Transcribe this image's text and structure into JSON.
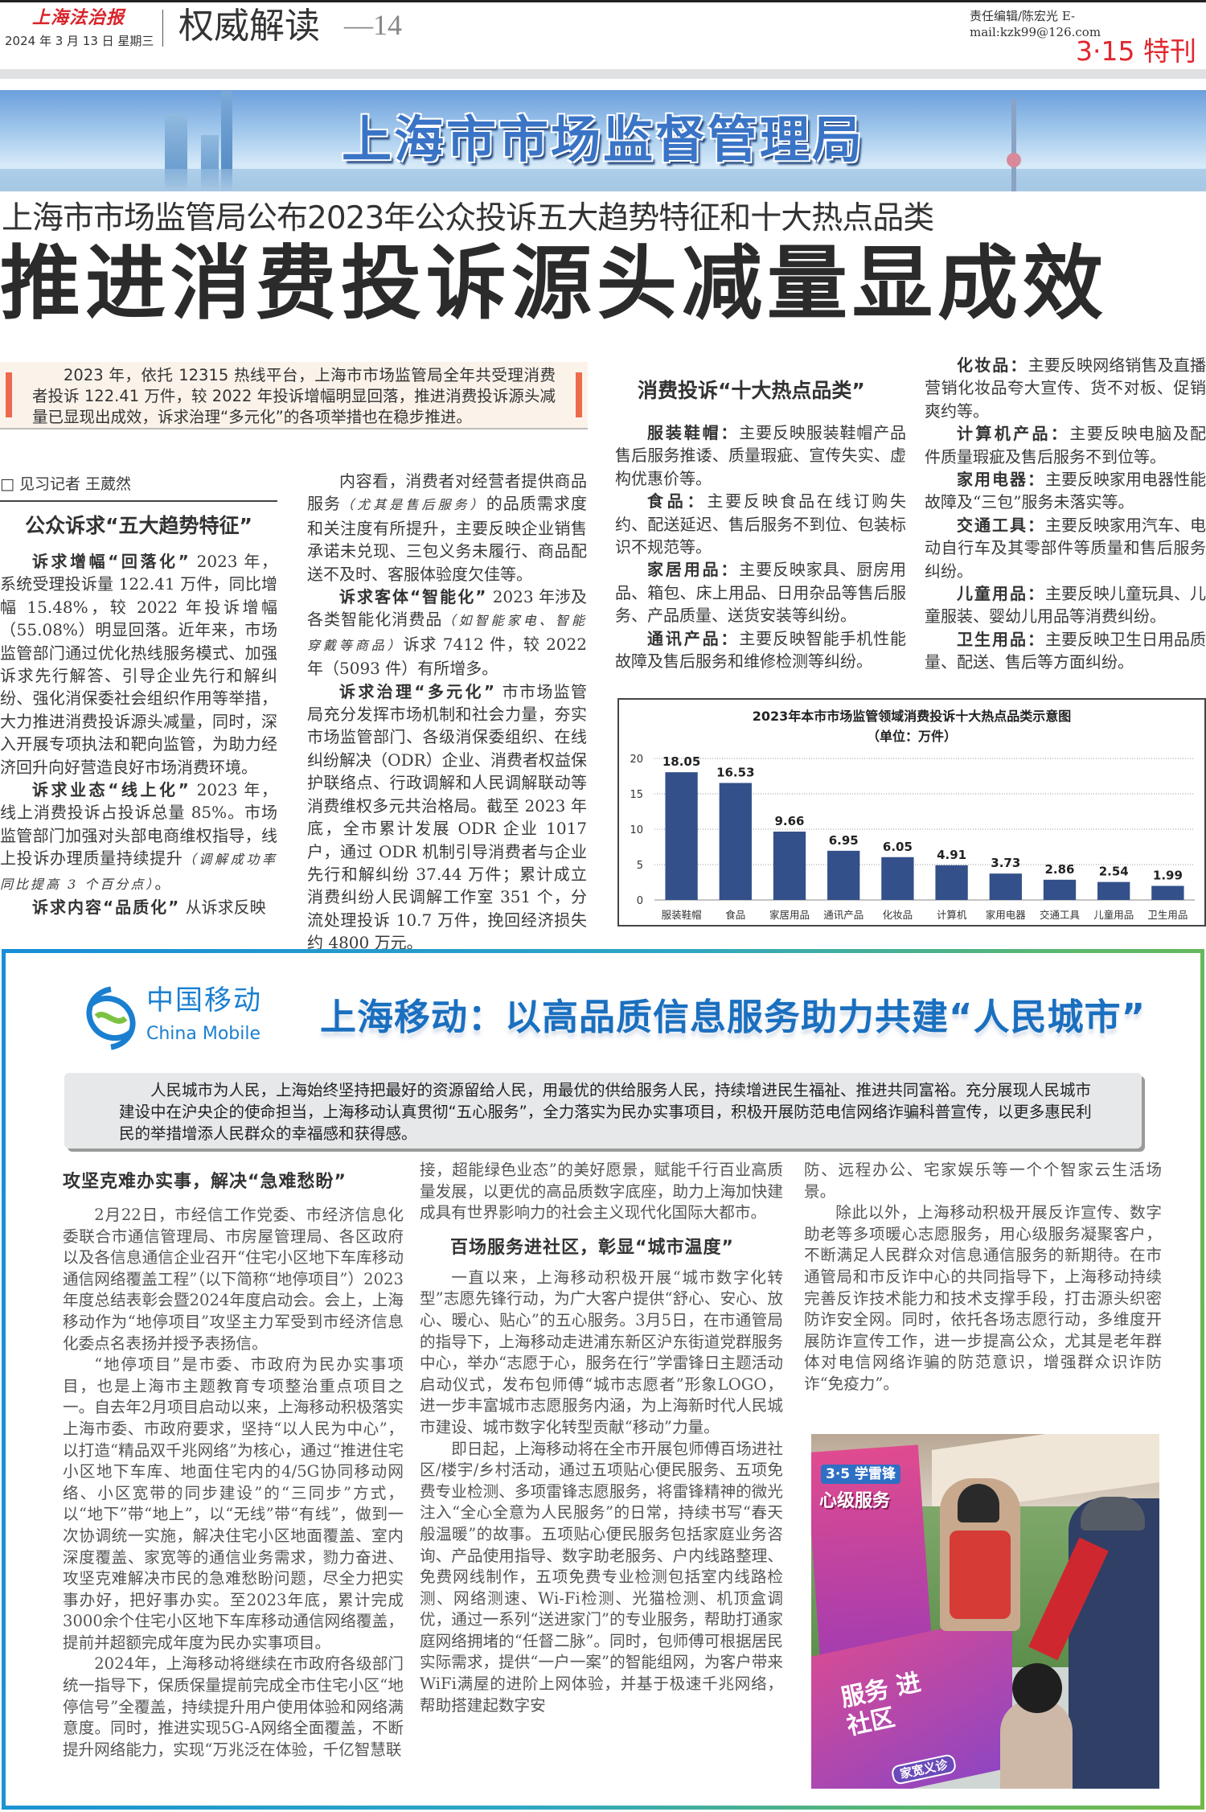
{
  "masthead": {
    "paper_name": "上海法治报",
    "date": "2024 年 3 月 13 日  星期三",
    "section": "权威解读",
    "page": "—14",
    "editor": "责任编辑/陈宏光    E-mail:kzk99@126.com",
    "special": "3·15 特刊"
  },
  "banner": {
    "title": "上海市市场监督管理局"
  },
  "article": {
    "subhead": "上海市市场监管局公布2023年公众投诉五大趋势特征和十大热点品类",
    "headline": "推进消费投诉源头减量显成效",
    "lead": "2023 年，依托 12315 热线平台，上海市市场监管局全年共受理消费者投诉 122.41 万件，较 2022 年投诉增幅明显回落，推进消费投诉源头减量已显现出成效，诉求治理“多元化”的各项举措也在稳步推进。",
    "byline": "□ 见习记者  王葳然",
    "section_heading": "公众诉求“五大趋势特征”",
    "col1": [
      [
        {
          "b": 1,
          "t": "诉求增幅“回落化”"
        },
        {
          "t": "  2023 年，系统受理投诉量 122.41 万件，同比增幅 15.48%，较 2022 年投诉增幅（55.08%）明显回落。近年来，市场监管部门通过优化热线服务模式、加强诉求先行解答、引导企业先行和解纠纷、强化消保委社会组织作用等举措，大力推进消费投诉源头减量，同时，深入开展专项执法和靶向监管，为助力经济回升向好营造良好市场消费环境。"
        }
      ],
      [
        {
          "b": 1,
          "t": "诉求业态“线上化”"
        },
        {
          "t": "  2023 年，线上消费投诉占投诉总量 85%。市场监管部门加强对头部电商维权指导，线上投诉办理质量持续提升"
        },
        {
          "s": 1,
          "t": "（调解成功率同比提高 3 个百分点）"
        },
        {
          "t": "。"
        }
      ],
      [
        {
          "b": 1,
          "t": "诉求内容“品质化”"
        },
        {
          "t": "  从诉求反映"
        }
      ]
    ],
    "col2": [
      [
        {
          "t": "内容看，消费者对经营者提供商品服务"
        },
        {
          "s": 1,
          "t": "（尤其是售后服务）"
        },
        {
          "t": "的品质需求度和关注度有所提升，主要反映企业销售承诺未兑现、三包义务未履行、商品配送不及时、客服体验度欠佳等。"
        }
      ],
      [
        {
          "b": 1,
          "t": "诉求客体“智能化”"
        },
        {
          "t": "  2023 年涉及各类智能化消费品"
        },
        {
          "s": 1,
          "t": "（如智能家电、智能穿戴等商品）"
        },
        {
          "t": "诉求 7412 件，较 2022 年（5093 件）有所增多。"
        }
      ],
      [
        {
          "b": 1,
          "t": "诉求治理“多元化”"
        },
        {
          "t": "  市市场监管局充分发挥市场机制和社会力量，夯实市场监管部门、各级消保委组织、在线纠纷解决（ODR）企业、消费者权益保护联络点、行政调解和人民调解联动等消费维权多元共治格局。截至 2023 年底，全市累计发展 ODR 企业 1017 户，通过 ODR 机制引导消费者与企业先行和解纠纷 37.44 万件；累计成立消费纠纷人民调解工作室 351 个，分流处理投诉 10.7 万件，挽回经济损失约 4800 万元。"
        }
      ]
    ],
    "hot_heading": "消费投诉“十大热点品类”",
    "col3": [
      [
        {
          "b": 1,
          "t": "服装鞋帽："
        },
        {
          "t": "主要反映服装鞋帽产品售后服务推诿、质量瑕疵、宣传失实、虚构优惠价等。"
        }
      ],
      [
        {
          "b": 1,
          "t": "食品："
        },
        {
          "t": "主要反映食品在线订购失约、配送延迟、售后服务不到位、包装标识不规范等。"
        }
      ],
      [
        {
          "b": 1,
          "t": "家居用品："
        },
        {
          "t": "主要反映家具、厨房用品、箱包、床上用品、日用杂品等售后服务、产品质量、送货安装等纠纷。"
        }
      ],
      [
        {
          "b": 1,
          "t": "通讯产品："
        },
        {
          "t": "主要反映智能手机性能故障及售后服务和维修检测等纠纷。"
        }
      ]
    ],
    "col4": [
      [
        {
          "b": 1,
          "t": "化妆品："
        },
        {
          "t": "主要反映网络销售及直播营销化妆品夸大宣传、货不对板、促销爽约等。"
        }
      ],
      [
        {
          "b": 1,
          "t": "计算机产品："
        },
        {
          "t": "主要反映电脑及配件质量瑕疵及售后服务不到位等。"
        }
      ],
      [
        {
          "b": 1,
          "t": "家用电器："
        },
        {
          "t": "主要反映家用电器性能故障及“三包”服务未落实等。"
        }
      ],
      [
        {
          "b": 1,
          "t": "交通工具："
        },
        {
          "t": "主要反映家用汽车、电动自行车及其零部件等质量和售后服务纠纷。"
        }
      ],
      [
        {
          "b": 1,
          "t": "儿童用品："
        },
        {
          "t": "主要反映儿童玩具、儿童服装、婴幼儿用品等消费纠纷。"
        }
      ],
      [
        {
          "b": 1,
          "t": "卫生用品："
        },
        {
          "t": "主要反映卫生日用品质量、配送、售后等方面纠纷。"
        }
      ]
    ]
  },
  "chart_data": {
    "type": "bar",
    "title": "2023年本市市场监管领域消费投诉十大热点品类示意图",
    "subtitle": "（单位：万件）",
    "categories": [
      "服装鞋帽",
      "食品",
      "家居用品",
      "通讯产品",
      "化妆品",
      "计算机",
      "家用电器",
      "交通工具",
      "儿童用品",
      "卫生用品"
    ],
    "values": [
      18.05,
      16.53,
      9.66,
      6.95,
      6.05,
      4.91,
      3.73,
      2.86,
      2.54,
      1.99
    ],
    "value_labels": [
      "18.05",
      "16.53",
      "9.66",
      "6.95",
      "6.05",
      "4.91",
      "3.73",
      "2.86",
      "2.54",
      "1.99"
    ],
    "yticks": [
      "0",
      "5",
      "10",
      "15",
      "20"
    ],
    "ylim": [
      0,
      20
    ],
    "grid": true,
    "bar_color": "#34508a"
  },
  "cmcc": {
    "logo_cn": "中国移动",
    "logo_en": "China Mobile",
    "title": "上海移动：以高品质信息服务助力共建“人民城市”",
    "summary": "人民城市为人民，上海始终坚持把最好的资源留给人民，用最优的供给服务人民，持续增进民生福祉、推进共同富裕。充分展现人民城市建设中在沪央企的使命担当，上海移动认真贯彻“五心服务”，全力落实为民办实事项目，积极开展防范电信网络诈骗科普宣传，以更多惠民利民的举措增添人民群众的幸福感和获得感。",
    "heading1": "攻坚克难办实事，解决“急难愁盼”",
    "heading2": "百场服务进社区，彰显“城市温度”",
    "colA": [
      "2月22日，市经信工作党委、市经济信息化委联合市通信管理局、市房屋管理局、各区政府以及各信息通信企业召开“住宅小区地下车库移动通信网络覆盖工程”（以下简称“地停项目”）2023年度总结表彰会暨2024年度启动会。会上，上海移动作为“地停项目”攻坚主力军受到市经济信息化委点名表扬并授予表扬信。",
      "“地停项目”是市委、市政府为民办实事项目，也是上海市主题教育专项整治重点项目之一。自去年2月项目启动以来，上海移动积极落实上海市委、市政府要求，坚持“以人民为中心”，以打造“精品双千兆网络”为核心，通过“推进住宅小区地下车库、地面住宅内的4/5G协同移动网络、小区宽带的同步建设”的“三同步”方式，以“地下”带“地上”，以“无线”带“有线”，做到一次协调统一实施，解决住宅小区地面覆盖、室内深度覆盖、家宽等的通信业务需求，勠力奋进、攻坚克难解决市民的急难愁盼问题，尽全力把实事办好，把好事办实。至2023年底，累计完成3000余个住宅小区地下车库移动通信网络覆盖，提前并超额完成年度为民办实事项目。",
      "2024年，上海移动将继续在市政府各级部门统一指导下，保质保量提前完成全市住宅小区“地停信号”全覆盖，持续提升用户使用体验和网络满意度。同时，推进实现5G-A网络全面覆盖，不断提升网络能力，实现“万兆泛在体验，千亿智慧联"
    ],
    "colB_cont": "接，超能绿色业态”的美好愿景，赋能千行百业高质量发展，以更优的高品质数字底座，助力上海加快建成具有世界影响力的社会主义现代化国际大都市。",
    "colB": [
      "一直以来，上海移动积极开展“城市数字化转型”志愿先锋行动，为广大客户提供“舒心、安心、放心、暖心、贴心”的五心服务。3月5日，在市通管局的指导下，上海移动走进浦东新区沪东街道党群服务中心，举办“志愿于心，服务在行”学雷锋日主题活动启动仪式，发布包师傅“城市志愿者”形象LOGO，进一步丰富城市志愿服务内涵，为上海新时代人民城市建设、城市数字化转型贡献“移动”力量。",
      "即日起，上海移动将在全市开展包师傅百场进社区/楼宇/乡村活动，通过五项贴心便民服务、五项免费专业检测、多项雷锋志愿服务，将雷锋精神的微光注入“全心全意为人民服务”的日常，持续书写“春天般温暖”的故事。五项贴心便民服务包括家庭业务咨询、产品使用指导、数字助老服务、户内线路整理、免费网线制作，五项免费专业检测包括室内线路检测、网络测速、Wi-Fi检测、光猫检测、机顶盒调优，通过一系列“送进家门”的专业服务，帮助打通家庭网络拥堵的“任督二脉”。同时，包师傅可根据居民实际需求，提供“一户一案”的智能组网，为客户带来WiFi满屋的进阶上网体验，并基于极速千兆网络，帮助搭建起数字安"
    ],
    "colC_cont": "防、远程办公、宅家娱乐等一个个智家云生活场景。",
    "colC": [
      "除此以外，上海移动积极开展反诈宣传、数字助老等多项暖心志愿服务，用心级服务凝聚客户，不断满足人民群众对信息通信服务的新期待。在市通管局和市反诈中心的共同指导下，上海移动持续完善反诈技术能力和技术支撑手段，打击源头织密防诈安全网。同时，依托各场志愿行动，多维度开展防诈宣传工作，进一步提高公众，尤其是老年群体对电信网络诈骗的防范意识，增强群众识诈防诈“免疫力”。"
    ],
    "photo_sign": [
      "3·5 学雷锋",
      "心级服务",
      "服务 进社区",
      "家宽义诊"
    ]
  }
}
